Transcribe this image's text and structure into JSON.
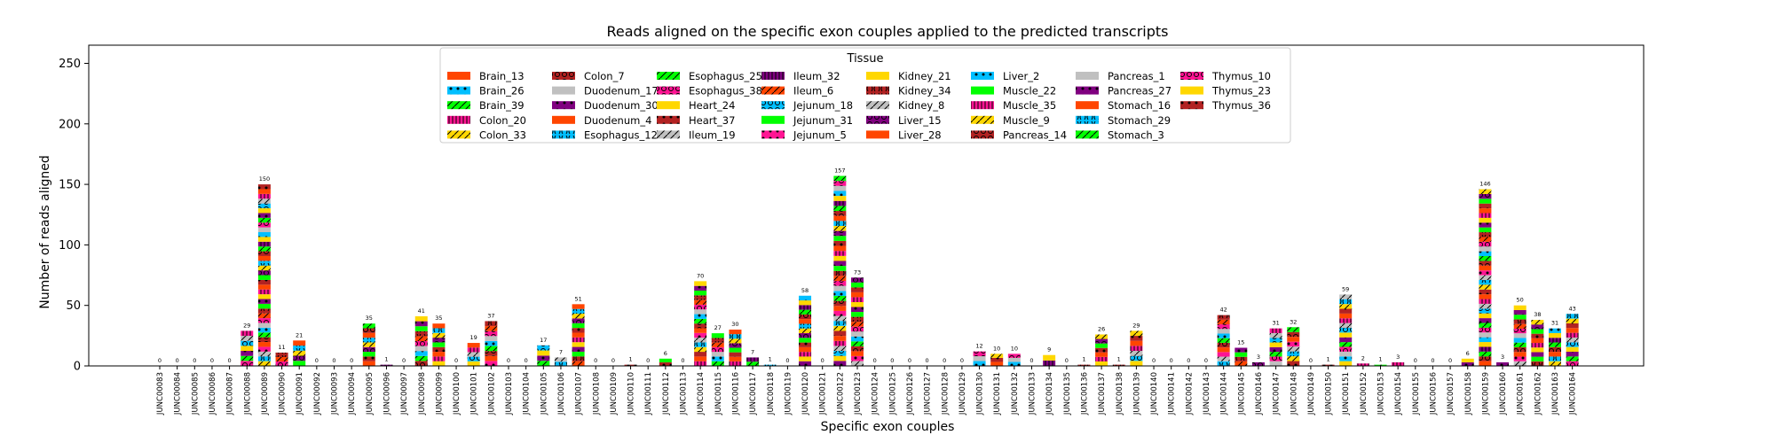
{
  "chart_data": {
    "type": "bar",
    "stacked": true,
    "title": "Reads aligned on the specific exon couples applied to the predicted transcripts",
    "xlabel": "Specific exon couples",
    "ylabel": "Number of reads aligned",
    "ylim": [
      0,
      265
    ],
    "yticks": [
      0,
      50,
      100,
      150,
      200,
      250
    ],
    "grid": false,
    "legend_title": "Tissue",
    "legend_position": "top-center",
    "categories": [
      "JUNC00083",
      "JUNC00084",
      "JUNC00085",
      "JUNC00086",
      "JUNC00087",
      "JUNC00088",
      "JUNC00089",
      "JUNC00090",
      "JUNC00091",
      "JUNC00092",
      "JUNC00093",
      "JUNC00094",
      "JUNC00095",
      "JUNC00096",
      "JUNC00097",
      "JUNC00098",
      "JUNC00099",
      "JUNC00100",
      "JUNC00101",
      "JUNC00102",
      "JUNC00103",
      "JUNC00104",
      "JUNC00105",
      "JUNC00106",
      "JUNC00107",
      "JUNC00108",
      "JUNC00109",
      "JUNC00110",
      "JUNC00111",
      "JUNC00112",
      "JUNC00113",
      "JUNC00114",
      "JUNC00115",
      "JUNC00116",
      "JUNC00117",
      "JUNC00118",
      "JUNC00119",
      "JUNC00120",
      "JUNC00121",
      "JUNC00122",
      "JUNC00123",
      "JUNC00124",
      "JUNC00125",
      "JUNC00126",
      "JUNC00127",
      "JUNC00128",
      "JUNC00129",
      "JUNC00130",
      "JUNC00131",
      "JUNC00132",
      "JUNC00133",
      "JUNC00134",
      "JUNC00135",
      "JUNC00136",
      "JUNC00137",
      "JUNC00138",
      "JUNC00139",
      "JUNC00140",
      "JUNC00141",
      "JUNC00142",
      "JUNC00143",
      "JUNC00144",
      "JUNC00145",
      "JUNC00146",
      "JUNC00147",
      "JUNC00148",
      "JUNC00149",
      "JUNC00150",
      "JUNC00151",
      "JUNC00152",
      "JUNC00153",
      "JUNC00154",
      "JUNC00155",
      "JUNC00156",
      "JUNC00157",
      "JUNC00158",
      "JUNC00159",
      "JUNC00160",
      "JUNC00161",
      "JUNC00162",
      "JUNC00163",
      "JUNC00164"
    ],
    "totals": [
      0,
      0,
      0,
      0,
      0,
      29,
      150,
      11,
      21,
      0,
      0,
      0,
      35,
      1,
      0,
      41,
      35,
      0,
      19,
      37,
      0,
      0,
      17,
      7,
      51,
      0,
      0,
      1,
      0,
      6,
      0,
      70,
      27,
      30,
      7,
      1,
      0,
      58,
      0,
      157,
      73,
      0,
      0,
      0,
      0,
      0,
      0,
      12,
      10,
      10,
      0,
      9,
      0,
      1,
      26,
      1,
      29,
      0,
      0,
      0,
      0,
      42,
      15,
      3,
      31,
      32,
      0,
      1,
      59,
      2,
      1,
      3,
      0,
      0,
      0,
      6,
      146,
      3,
      50,
      38,
      31,
      43
    ],
    "series": [
      {
        "name": "Brain_13",
        "color": "#ff4500",
        "hatch": "none"
      },
      {
        "name": "Brain_26",
        "color": "#00bfff",
        "hatch": "dot"
      },
      {
        "name": "Brain_39",
        "color": "#00ff00",
        "hatch": "slash"
      },
      {
        "name": "Colon_20",
        "color": "#ff1493",
        "hatch": "vline"
      },
      {
        "name": "Colon_33",
        "color": "#ffd700",
        "hatch": "slash"
      },
      {
        "name": "Colon_7",
        "color": "#b22222",
        "hatch": "circle"
      },
      {
        "name": "Duodenum_17",
        "color": "#c0c0c0",
        "hatch": "none"
      },
      {
        "name": "Duodenum_30",
        "color": "#800080",
        "hatch": "dot"
      },
      {
        "name": "Duodenum_4",
        "color": "#ff4500",
        "hatch": "none"
      },
      {
        "name": "Esophagus_12",
        "color": "#00bfff",
        "hatch": "paren"
      },
      {
        "name": "Esophagus_25",
        "color": "#00ff00",
        "hatch": "slash"
      },
      {
        "name": "Esophagus_38",
        "color": "#ff1493",
        "hatch": "circle"
      },
      {
        "name": "Heart_24",
        "color": "#ffd700",
        "hatch": "none"
      },
      {
        "name": "Heart_37",
        "color": "#b22222",
        "hatch": "dot"
      },
      {
        "name": "Ileum_19",
        "color": "#c0c0c0",
        "hatch": "slash"
      },
      {
        "name": "Ileum_32",
        "color": "#800080",
        "hatch": "vline"
      },
      {
        "name": "Ileum_6",
        "color": "#ff4500",
        "hatch": "slash"
      },
      {
        "name": "Jejunum_18",
        "color": "#00bfff",
        "hatch": "circle"
      },
      {
        "name": "Jejunum_31",
        "color": "#00ff00",
        "hatch": "none"
      },
      {
        "name": "Jejunum_5",
        "color": "#ff1493",
        "hatch": "dot"
      },
      {
        "name": "Kidney_21",
        "color": "#ffd700",
        "hatch": "none"
      },
      {
        "name": "Kidney_34",
        "color": "#b22222",
        "hatch": "paren"
      },
      {
        "name": "Kidney_8",
        "color": "#c0c0c0",
        "hatch": "slash"
      },
      {
        "name": "Liver_15",
        "color": "#800080",
        "hatch": "circle"
      },
      {
        "name": "Liver_28",
        "color": "#ff4500",
        "hatch": "none"
      },
      {
        "name": "Liver_2",
        "color": "#00bfff",
        "hatch": "dot"
      },
      {
        "name": "Muscle_22",
        "color": "#00ff00",
        "hatch": "none"
      },
      {
        "name": "Muscle_35",
        "color": "#ff1493",
        "hatch": "vline"
      },
      {
        "name": "Muscle_9",
        "color": "#ffd700",
        "hatch": "slash"
      },
      {
        "name": "Pancreas_14",
        "color": "#b22222",
        "hatch": "circle"
      },
      {
        "name": "Pancreas_1",
        "color": "#c0c0c0",
        "hatch": "none"
      },
      {
        "name": "Pancreas_27",
        "color": "#800080",
        "hatch": "dot"
      },
      {
        "name": "Stomach_16",
        "color": "#ff4500",
        "hatch": "none"
      },
      {
        "name": "Stomach_29",
        "color": "#00bfff",
        "hatch": "paren"
      },
      {
        "name": "Stomach_3",
        "color": "#00ff00",
        "hatch": "slash"
      },
      {
        "name": "Thymus_10",
        "color": "#ff1493",
        "hatch": "circle"
      },
      {
        "name": "Thymus_23",
        "color": "#ffd700",
        "hatch": "none"
      },
      {
        "name": "Thymus_36",
        "color": "#b22222",
        "hatch": "dot"
      }
    ]
  }
}
